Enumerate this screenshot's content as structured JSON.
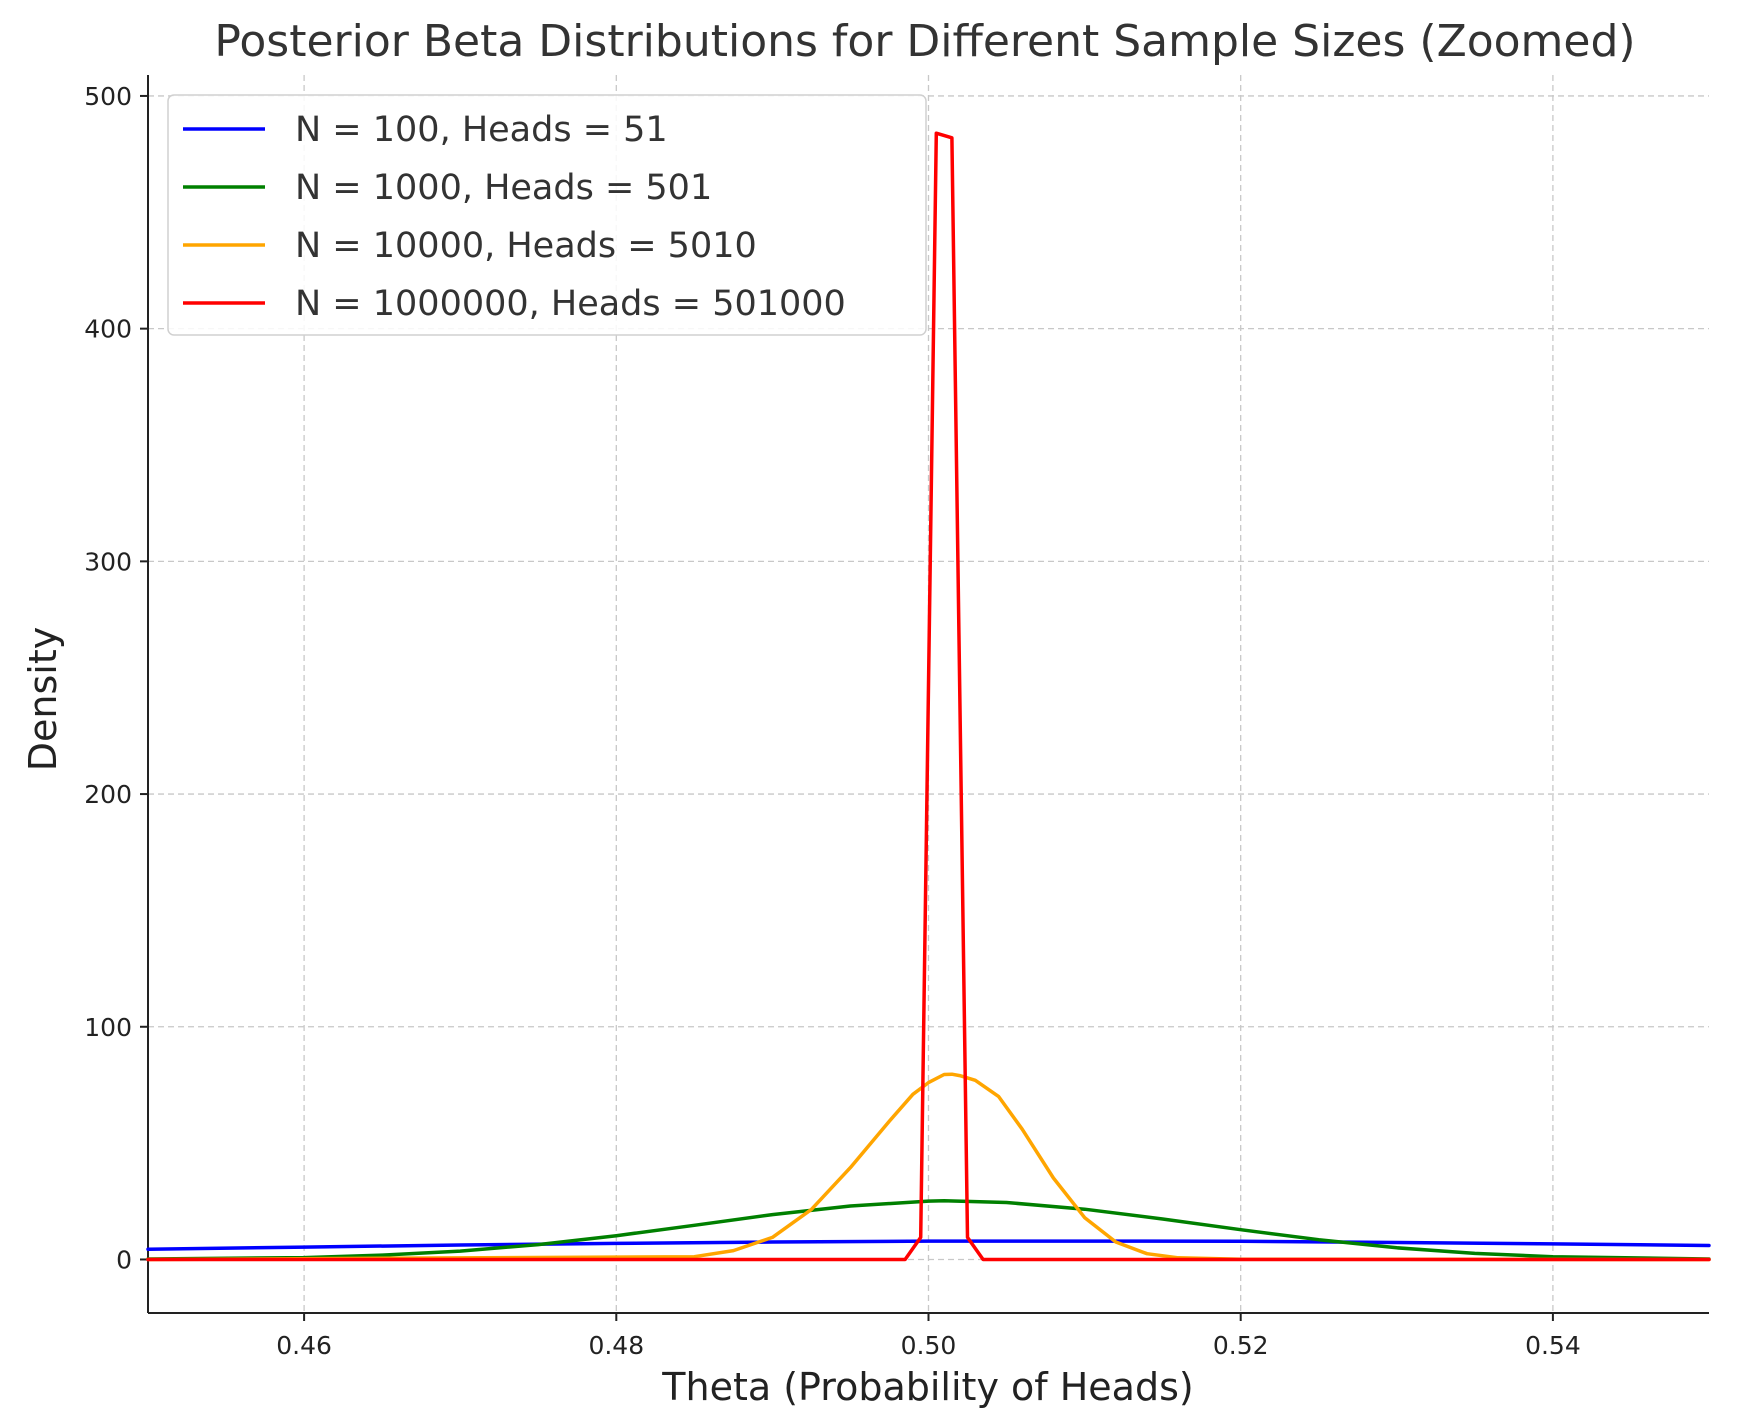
{
  "chart_data": {
    "type": "line",
    "title": "Posterior Beta Distributions for Different Sample Sizes (Zoomed)",
    "xlabel": "Theta (Probability of Heads)",
    "ylabel": "Density",
    "xlim": [
      0.45,
      0.55
    ],
    "ylim": [
      -23,
      509
    ],
    "xticks": [
      0.46,
      0.48,
      0.5,
      0.52,
      0.54
    ],
    "xtick_labels": [
      "0.46",
      "0.48",
      "0.50",
      "0.52",
      "0.54"
    ],
    "yticks": [
      0,
      100,
      200,
      300,
      400,
      500
    ],
    "ytick_labels": [
      "0",
      "100",
      "200",
      "300",
      "400",
      "500"
    ],
    "grid": true,
    "legend_position": "top-left",
    "series": [
      {
        "name": "N = 100, Heads = 51",
        "color": "#0000ff",
        "x": [
          0.45,
          0.46,
          0.47,
          0.48,
          0.49,
          0.5,
          0.51,
          0.52,
          0.53,
          0.54,
          0.55
        ],
        "y": [
          4.4,
          5.3,
          6.2,
          6.9,
          7.5,
          7.9,
          7.9,
          7.8,
          7.3,
          6.7,
          6.0
        ]
      },
      {
        "name": "N = 1000, Heads = 501",
        "color": "#008000",
        "x": [
          0.45,
          0.46,
          0.465,
          0.47,
          0.475,
          0.48,
          0.485,
          0.49,
          0.495,
          0.5,
          0.501,
          0.505,
          0.51,
          0.515,
          0.52,
          0.525,
          0.53,
          0.535,
          0.54,
          0.55
        ],
        "y": [
          0.2,
          0.8,
          1.9,
          3.6,
          6.4,
          10.2,
          14.7,
          19.3,
          23.0,
          25.1,
          25.2,
          24.5,
          21.6,
          17.4,
          12.8,
          8.5,
          5.0,
          2.6,
          1.2,
          0.2
        ],
        "stroke_px": 3.5
      },
      {
        "name": "N = 10000, Heads = 5010",
        "color": "#ffa500",
        "x": [
          0.45,
          0.485,
          0.4875,
          0.49,
          0.4925,
          0.495,
          0.4975,
          0.499,
          0.5,
          0.501,
          0.5015,
          0.502,
          0.503,
          0.5045,
          0.506,
          0.508,
          0.51,
          0.512,
          0.514,
          0.516,
          0.52,
          0.55
        ],
        "y": [
          0,
          1.2,
          3.8,
          9.5,
          21.5,
          39.5,
          59.5,
          71,
          76,
          79.5,
          79.6,
          79,
          77,
          70,
          56,
          35,
          18,
          7.5,
          2.5,
          0.7,
          0.1,
          0
        ],
        "stroke_px": 3.5
      },
      {
        "name": "N = 1000000, Heads = 501000",
        "color": "#ff0000",
        "x": [
          0.45,
          0.4985,
          0.4995,
          0.5005,
          0.5015,
          0.5025,
          0.5035,
          0.55
        ],
        "y": [
          0,
          0,
          9.5,
          484,
          482,
          9.5,
          0,
          0
        ],
        "stroke_px": 3.5
      }
    ]
  }
}
